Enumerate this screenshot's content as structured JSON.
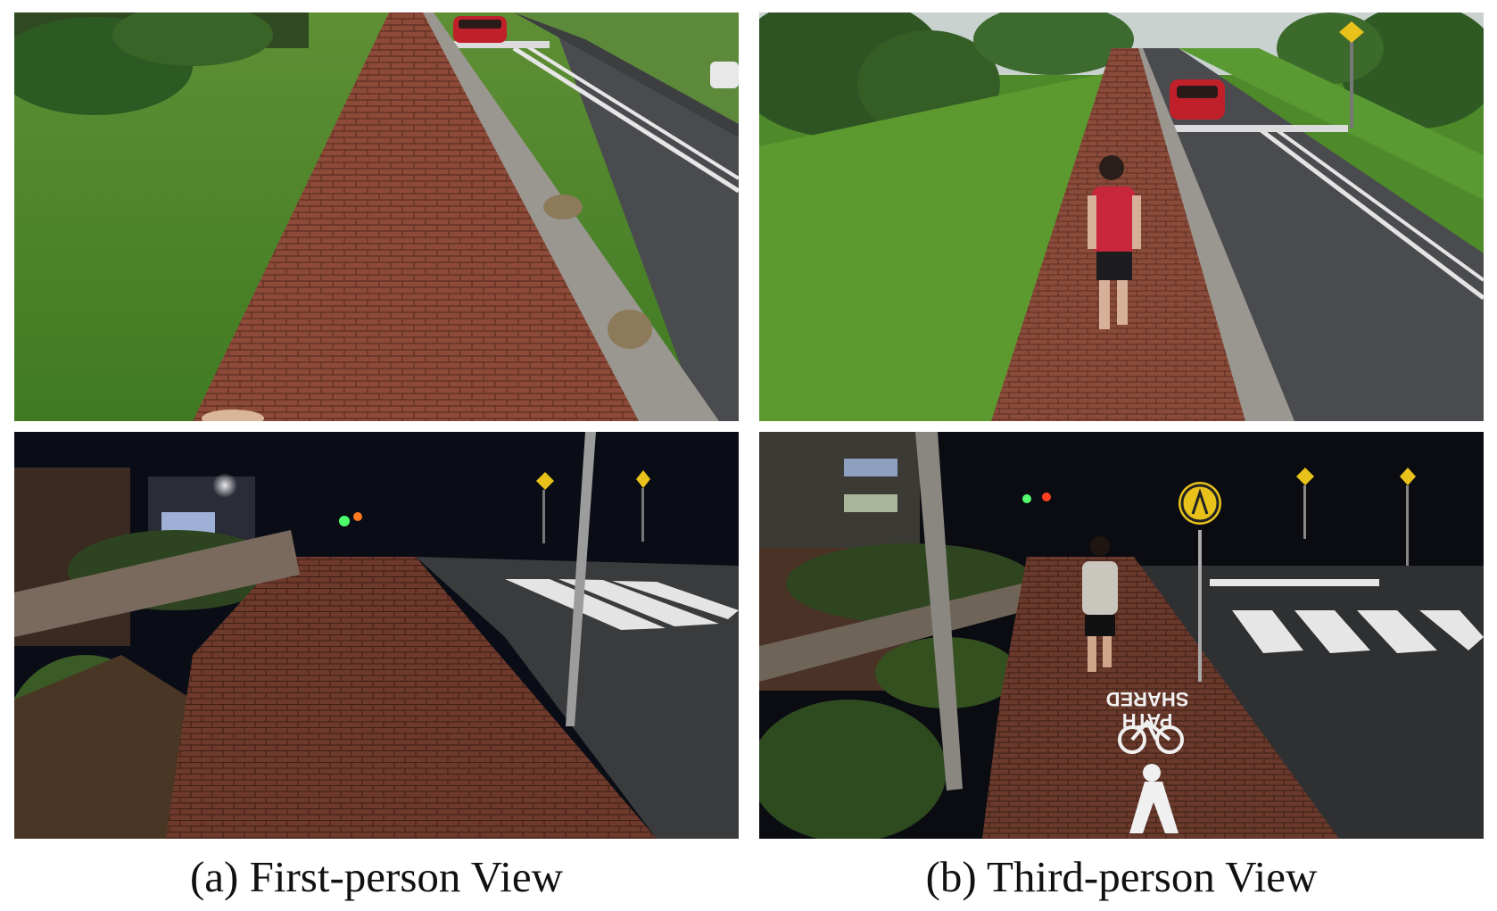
{
  "figure": {
    "captions": {
      "first_person": "(a) First-person View",
      "third_person": "(b) Third-person View"
    },
    "road_marking": {
      "line1": "SHARED",
      "line2": "PATH"
    }
  },
  "icons": [
    "pedestrian-crossing-sign-icon",
    "bicycle-marking-icon",
    "pedestrian-marking-icon",
    "warning-sign-icon"
  ],
  "colors": {
    "grass": "#4f8a2c",
    "brick": "#8a4b3a",
    "asphalt": "#3a3b3d",
    "night_sky": "#0a0d16",
    "sign_yellow": "#e8c21a",
    "car_red": "#c0202a"
  }
}
